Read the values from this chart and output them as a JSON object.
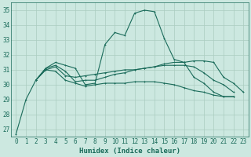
{
  "xlabel": "Humidex (Indice chaleur)",
  "bg_color": "#cce8e0",
  "grid_color": "#aaccbf",
  "line_color": "#1a6b5a",
  "xlim": [
    -0.5,
    23.5
  ],
  "ylim": [
    26.5,
    35.5
  ],
  "yticks": [
    27,
    28,
    29,
    30,
    31,
    32,
    33,
    34,
    35
  ],
  "xticks": [
    0,
    1,
    2,
    3,
    4,
    5,
    6,
    7,
    8,
    9,
    10,
    11,
    12,
    13,
    14,
    15,
    16,
    17,
    18,
    19,
    20,
    21,
    22,
    23
  ],
  "lines": [
    {
      "start": 0,
      "values": [
        26.7,
        29.0,
        30.3,
        31.1,
        31.5,
        31.3,
        31.1,
        30.0,
        30.1,
        32.7,
        33.5,
        33.3,
        34.8,
        35.0,
        34.9,
        33.1,
        31.7,
        31.5,
        30.5,
        30.1,
        29.5,
        29.2,
        29.2
      ]
    },
    {
      "start": 2,
      "values": [
        30.3,
        31.1,
        31.3,
        30.9,
        30.2,
        30.3,
        30.3,
        30.5,
        30.7,
        30.8,
        31.0,
        31.1,
        31.2,
        31.4,
        31.5,
        31.5,
        31.6,
        31.6,
        31.5,
        30.5,
        30.1,
        29.5
      ]
    },
    {
      "start": 2,
      "values": [
        30.3,
        31.0,
        30.9,
        30.3,
        30.1,
        29.9,
        30.0,
        30.1,
        30.1,
        30.1,
        30.2,
        30.2,
        30.2,
        30.1,
        30.0,
        29.8,
        29.6,
        29.5,
        29.3,
        29.2,
        29.2
      ]
    },
    {
      "start": 2,
      "values": [
        30.3,
        31.0,
        31.2,
        30.6,
        30.5,
        30.6,
        30.7,
        30.8,
        30.9,
        31.0,
        31.0,
        31.1,
        31.2,
        31.3,
        31.3,
        31.3,
        31.2,
        30.8,
        30.3,
        30.0,
        29.5
      ]
    }
  ],
  "linewidth": 0.8,
  "markersize": 2.0,
  "xlabel_fontsize": 6.5,
  "tick_fontsize": 5.5
}
